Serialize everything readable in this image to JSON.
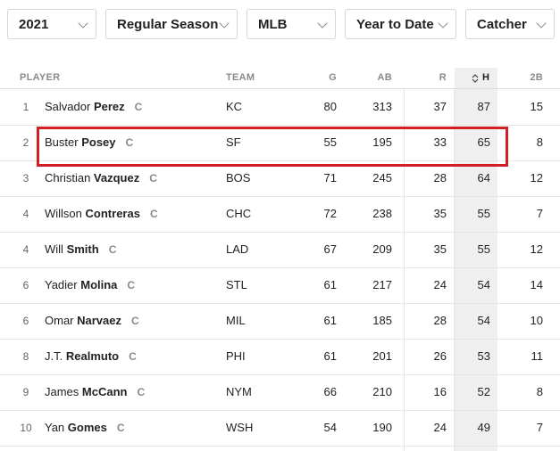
{
  "filters": [
    {
      "label": "2021",
      "name": "season-year-select"
    },
    {
      "label": "Regular Season",
      "name": "season-type-select"
    },
    {
      "label": "MLB",
      "name": "league-select"
    },
    {
      "label": "Year to Date",
      "name": "period-select"
    },
    {
      "label": "Catcher",
      "name": "position-select"
    }
  ],
  "columns": {
    "player": "PLAYER",
    "team": "TEAM",
    "g": "G",
    "ab": "AB",
    "r": "R",
    "h": "H",
    "b2": "2B"
  },
  "sorted_column": "H",
  "rows": [
    {
      "rank": "1",
      "first": "Salvador",
      "last": "Perez",
      "pos": "C",
      "team": "KC",
      "g": "80",
      "ab": "313",
      "r": "37",
      "h": "87",
      "b2": "15"
    },
    {
      "rank": "2",
      "first": "Buster",
      "last": "Posey",
      "pos": "C",
      "team": "SF",
      "g": "55",
      "ab": "195",
      "r": "33",
      "h": "65",
      "b2": "8"
    },
    {
      "rank": "3",
      "first": "Christian",
      "last": "Vazquez",
      "pos": "C",
      "team": "BOS",
      "g": "71",
      "ab": "245",
      "r": "28",
      "h": "64",
      "b2": "12"
    },
    {
      "rank": "4",
      "first": "Willson",
      "last": "Contreras",
      "pos": "C",
      "team": "CHC",
      "g": "72",
      "ab": "238",
      "r": "35",
      "h": "55",
      "b2": "7"
    },
    {
      "rank": "4",
      "first": "Will",
      "last": "Smith",
      "pos": "C",
      "team": "LAD",
      "g": "67",
      "ab": "209",
      "r": "35",
      "h": "55",
      "b2": "12"
    },
    {
      "rank": "6",
      "first": "Yadier",
      "last": "Molina",
      "pos": "C",
      "team": "STL",
      "g": "61",
      "ab": "217",
      "r": "24",
      "h": "54",
      "b2": "14"
    },
    {
      "rank": "6",
      "first": "Omar",
      "last": "Narvaez",
      "pos": "C",
      "team": "MIL",
      "g": "61",
      "ab": "185",
      "r": "28",
      "h": "54",
      "b2": "10"
    },
    {
      "rank": "8",
      "first": "J.T.",
      "last": "Realmuto",
      "pos": "C",
      "team": "PHI",
      "g": "61",
      "ab": "201",
      "r": "26",
      "h": "53",
      "b2": "11"
    },
    {
      "rank": "9",
      "first": "James",
      "last": "McCann",
      "pos": "C",
      "team": "NYM",
      "g": "66",
      "ab": "210",
      "r": "16",
      "h": "52",
      "b2": "8"
    },
    {
      "rank": "10",
      "first": "Yan",
      "last": "Gomes",
      "pos": "C",
      "team": "WSH",
      "g": "54",
      "ab": "190",
      "r": "24",
      "h": "49",
      "b2": "7"
    }
  ],
  "highlight_color": "#d21f26"
}
